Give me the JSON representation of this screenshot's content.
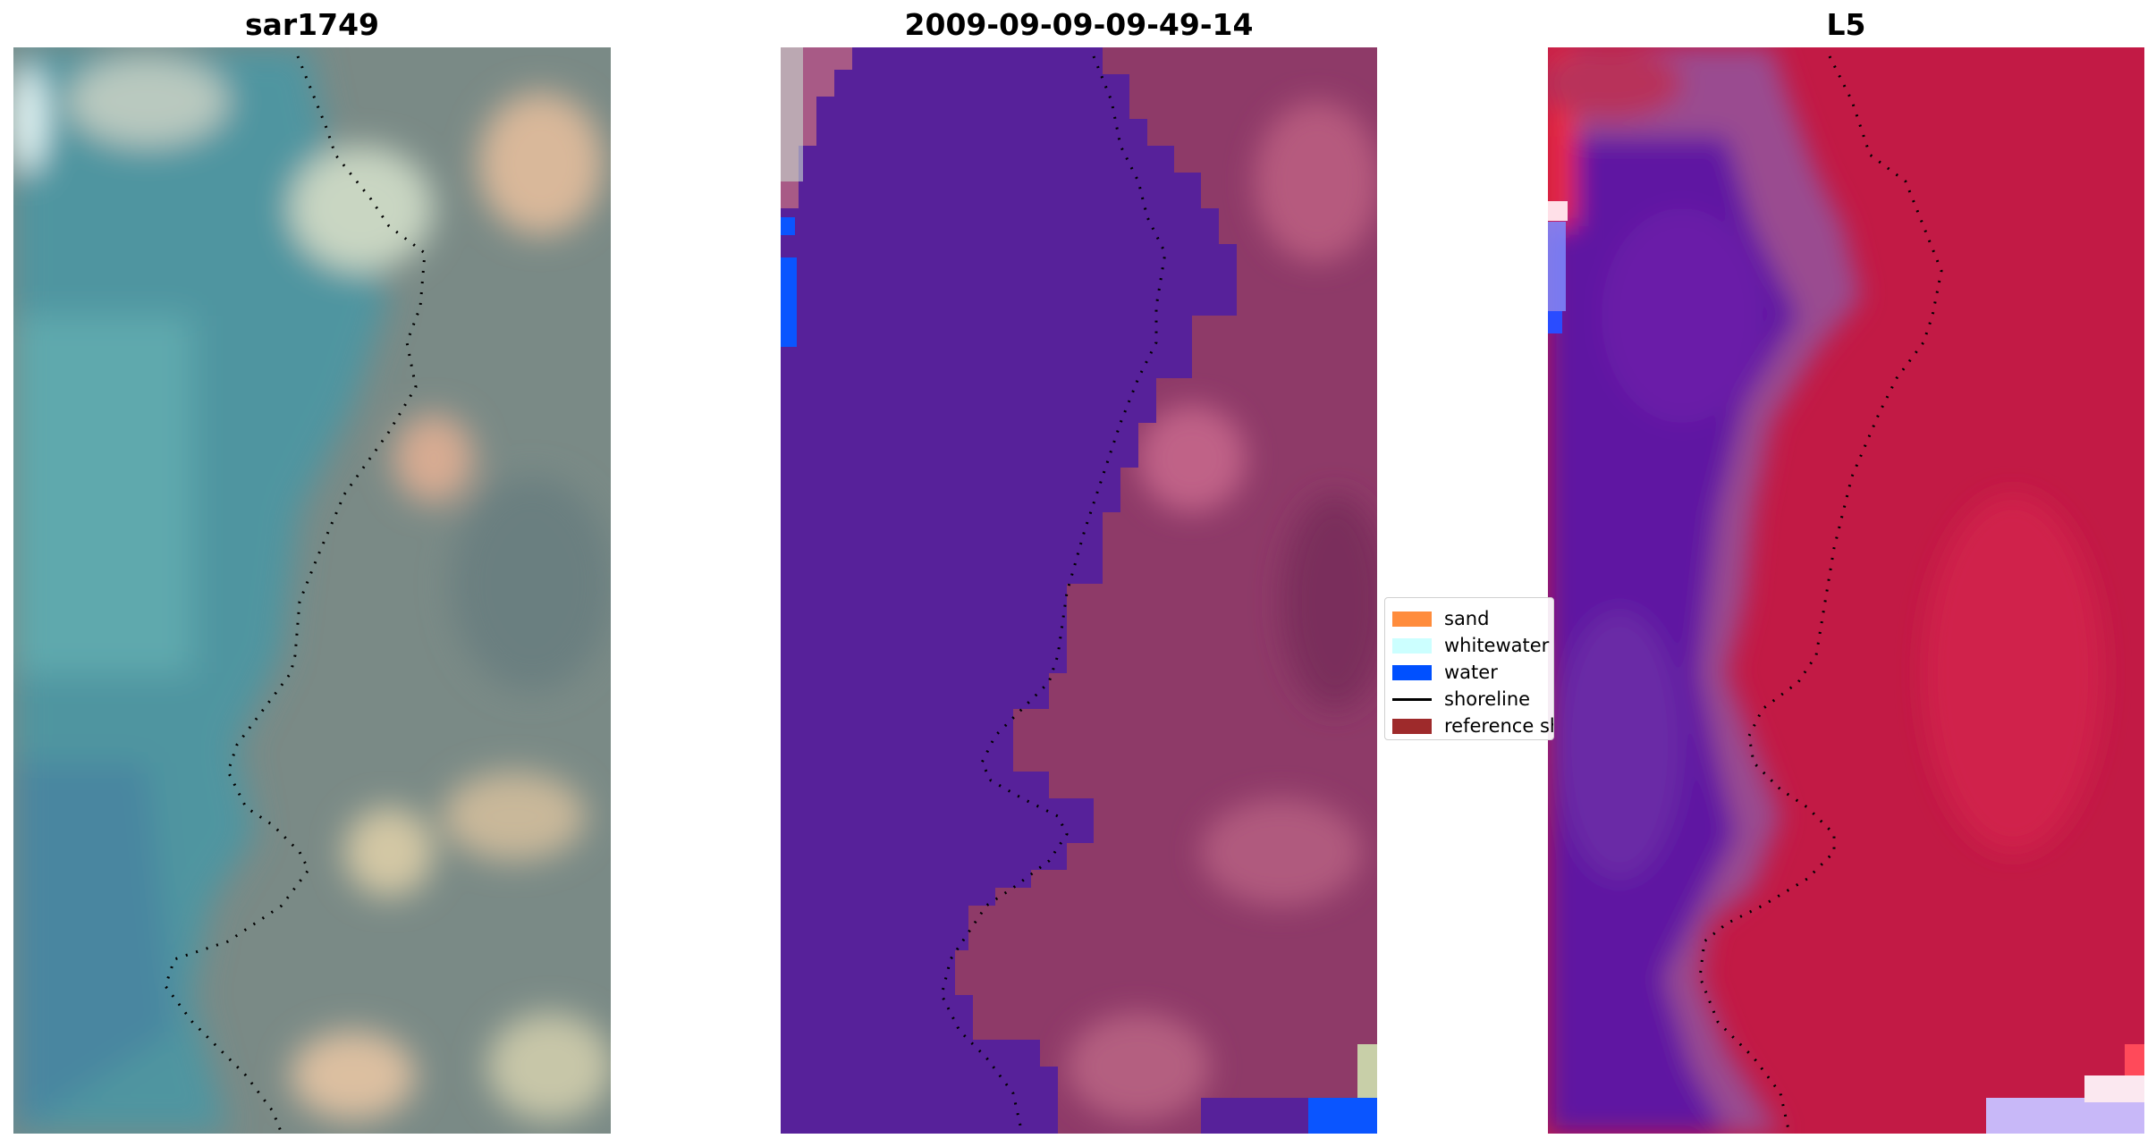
{
  "panels": [
    {
      "id": "p1",
      "title": "sar1749",
      "kind": "rgb-image"
    },
    {
      "id": "p2",
      "title": "2009-09-09-09-49-14",
      "kind": "classified-image"
    },
    {
      "id": "p3",
      "title": "L5",
      "kind": "index-image"
    }
  ],
  "legend": {
    "items": [
      {
        "label": "sand",
        "color": "#FF8C3C",
        "kind": "patch"
      },
      {
        "label": "whitewater",
        "color": "#CCFFFF",
        "kind": "patch"
      },
      {
        "label": "water",
        "color": "#0050FF",
        "kind": "patch"
      },
      {
        "label": "shoreline",
        "color": "#000000",
        "kind": "line"
      },
      {
        "label": "reference shoreline",
        "color": "#9E2A2B",
        "kind": "patch"
      }
    ]
  },
  "colors": {
    "water_class": "#5A2A9E",
    "water_blue": "#0A55FF",
    "land_tint": "#8A3A6A",
    "index_land": "#C2123E",
    "index_water": "#5C10A0"
  }
}
